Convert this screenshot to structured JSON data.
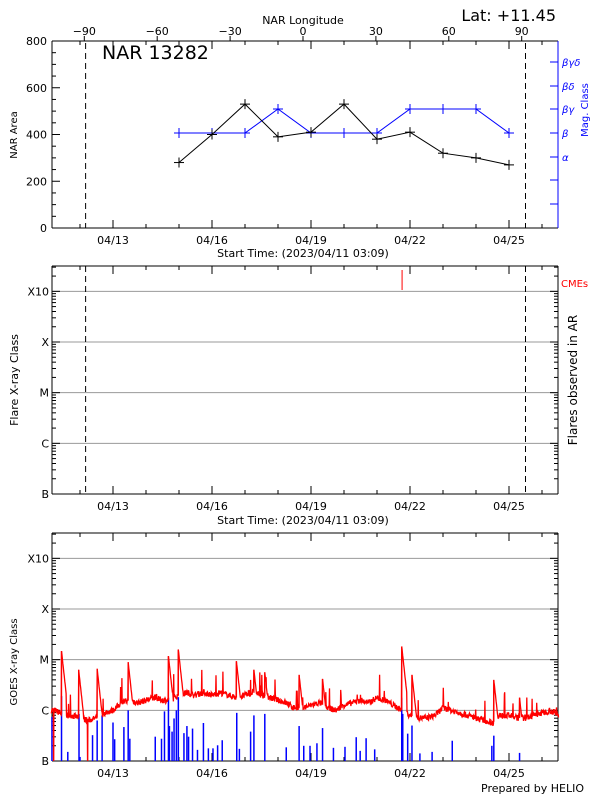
{
  "header": {
    "latitude_label": "Lat: +11.45",
    "region_label": "NAR 13282",
    "longitude_axis_title": "NAR Longitude",
    "footer": "Prepared by HELIO"
  },
  "colors": {
    "area": "#000000",
    "mag": "#0000ff",
    "goes": "#ff0000",
    "flares": "#0000ff",
    "cme": "#ff0000",
    "grid": "#999999"
  },
  "chart_data": [
    {
      "type": "line",
      "panel": "nar",
      "title": "NAR 13282",
      "xlabel": "Start Time: (2023/04/11 03:09)",
      "ylabel": "NAR Area",
      "y2label": "Mag. Class",
      "top_axis_label": "NAR Longitude",
      "x_unit": "days since 2023/04/11 00:00",
      "xlim": [
        0.13,
        15.5
      ],
      "ylim": [
        0,
        800
      ],
      "yticks": [
        0,
        200,
        400,
        600,
        800
      ],
      "xticks": [
        {
          "day": 2,
          "label": "04/13"
        },
        {
          "day": 5,
          "label": "04/16"
        },
        {
          "day": 8,
          "label": "04/19"
        },
        {
          "day": 11,
          "label": "04/22"
        },
        {
          "day": 14,
          "label": "04/25"
        }
      ],
      "longitude_ticks": [
        -90,
        -60,
        -30,
        0,
        30,
        60,
        90
      ],
      "limb_days": [
        1.17,
        14.5
      ],
      "mag_class_levels": [
        "α",
        "β",
        "βγ",
        "βδ",
        "βγδ"
      ],
      "series": [
        {
          "name": "NAR Area",
          "days": [
            4,
            5,
            6,
            7,
            8,
            9,
            10,
            11,
            12,
            13,
            14
          ],
          "values": [
            280,
            400,
            530,
            390,
            410,
            530,
            380,
            410,
            320,
            300,
            270
          ]
        },
        {
          "name": "Mag. Class",
          "days": [
            4,
            5,
            6,
            7,
            8,
            9,
            10,
            11,
            12,
            13,
            14
          ],
          "values": [
            "β",
            "β",
            "β",
            "βγ",
            "β",
            "β",
            "β",
            "βγ",
            "βγ",
            "βγ",
            "β"
          ]
        }
      ]
    },
    {
      "type": "scatter",
      "panel": "flares",
      "xlabel": "Start Time: (2023/04/11 03:09)",
      "ylabel": "Flare X-ray Class",
      "y2label": "Flares observed in AR",
      "cme_label": "CMEs",
      "yticks": [
        "B",
        "C",
        "M",
        "X",
        "X10"
      ],
      "ylim_log": [
        -7,
        -2.5
      ],
      "flares": [],
      "cmes": [
        10.76
      ]
    },
    {
      "type": "line",
      "panel": "goes",
      "xlabel": "",
      "ylabel": "GOES X-ray Class",
      "yticks": [
        "B",
        "C",
        "M",
        "X",
        "X10"
      ],
      "ylim_log": [
        -7,
        -2.5
      ],
      "goes_background_step_days": 0.25,
      "goes_background_start_day": 0.25,
      "goes_background_log": [
        -6.0,
        -6.1,
        -6.1,
        -6.15,
        -6.2,
        -6.15,
        -6.05,
        -6.0,
        -5.85,
        -5.8,
        -5.85,
        -5.8,
        -5.75,
        -5.8,
        -5.8,
        -5.7,
        -5.65,
        -5.7,
        -5.65,
        -5.7,
        -5.65,
        -5.7,
        -5.75,
        -5.7,
        -5.65,
        -5.7,
        -5.75,
        -5.8,
        -5.85,
        -5.95,
        -5.95,
        -5.9,
        -5.85,
        -5.95,
        -6.0,
        -5.9,
        -5.85,
        -5.8,
        -5.85,
        -5.75,
        -5.8,
        -5.9,
        -6.0,
        -6.1,
        -6.15,
        -6.15,
        -6.1,
        -5.95,
        -6.0,
        -6.05,
        -6.1,
        -6.15,
        -6.2,
        -6.25,
        -6.1,
        -6.1,
        -6.15,
        -6.15,
        -6.1,
        -6.05,
        -6.0,
        -6.1
      ],
      "goes_peaks": [
        [
          0.2,
          -7.0
        ],
        [
          0.44,
          -4.83
        ],
        [
          0.96,
          -5.2
        ],
        [
          1.23,
          -7.0
        ],
        [
          1.52,
          -5.18
        ],
        [
          2.46,
          -5.05
        ],
        [
          3.68,
          -4.93
        ],
        [
          3.98,
          -4.8
        ],
        [
          5.74,
          -5.03
        ],
        [
          6.27,
          -5.2
        ],
        [
          6.6,
          -5.25
        ],
        [
          7.64,
          -5.3
        ],
        [
          8.35,
          -5.38
        ],
        [
          10.75,
          -4.74
        ],
        [
          11.06,
          -5.3
        ],
        [
          13.54,
          -5.4
        ],
        [
          14.32,
          -5.75
        ]
      ],
      "flare_bars": [
        [
          0.15,
          -6.13
        ],
        [
          0.44,
          -5.72
        ],
        [
          0.63,
          -6.82
        ],
        [
          0.97,
          -6.07
        ],
        [
          1.0,
          -6.92
        ],
        [
          1.38,
          -6.49
        ],
        [
          1.52,
          -6.2
        ],
        [
          1.67,
          -6.1
        ],
        [
          2.0,
          -6.24
        ],
        [
          2.05,
          -6.57
        ],
        [
          2.33,
          -6.33
        ],
        [
          2.46,
          -6.0
        ],
        [
          2.51,
          -6.56
        ],
        [
          3.28,
          -6.52
        ],
        [
          3.47,
          -6.56
        ],
        [
          3.56,
          -6.02
        ],
        [
          3.68,
          -5.75
        ],
        [
          3.71,
          -6.31
        ],
        [
          3.79,
          -6.42
        ],
        [
          3.85,
          -6.16
        ],
        [
          3.92,
          -6.0
        ],
        [
          3.98,
          -5.74
        ],
        [
          4.15,
          -6.45
        ],
        [
          4.24,
          -6.31
        ],
        [
          4.29,
          -6.52
        ],
        [
          4.41,
          -6.36
        ],
        [
          4.56,
          -6.78
        ],
        [
          4.74,
          -6.25
        ],
        [
          4.89,
          -6.75
        ],
        [
          5.03,
          -6.75
        ],
        [
          5.17,
          -6.69
        ],
        [
          5.31,
          -6.59
        ],
        [
          5.75,
          -6.05
        ],
        [
          5.83,
          -6.76
        ],
        [
          6.17,
          -6.42
        ],
        [
          6.27,
          -6.1
        ],
        [
          6.6,
          -6.07
        ],
        [
          7.25,
          -6.73
        ],
        [
          7.64,
          -6.31
        ],
        [
          7.78,
          -6.7
        ],
        [
          7.97,
          -6.7
        ],
        [
          8.18,
          -6.65
        ],
        [
          8.35,
          -6.35
        ],
        [
          8.68,
          -6.74
        ],
        [
          9.03,
          -6.72
        ],
        [
          9.37,
          -6.53
        ],
        [
          9.49,
          -6.8
        ],
        [
          9.67,
          -6.55
        ],
        [
          9.93,
          -6.77
        ],
        [
          10.75,
          -5.75
        ],
        [
          10.78,
          -6.07
        ],
        [
          10.93,
          -6.46
        ],
        [
          11.06,
          -6.3
        ],
        [
          11.3,
          -6.85
        ],
        [
          11.67,
          -6.82
        ],
        [
          12.28,
          -6.6
        ],
        [
          13.48,
          -6.7
        ],
        [
          13.54,
          -6.5
        ],
        [
          14.32,
          -6.84
        ]
      ]
    }
  ]
}
